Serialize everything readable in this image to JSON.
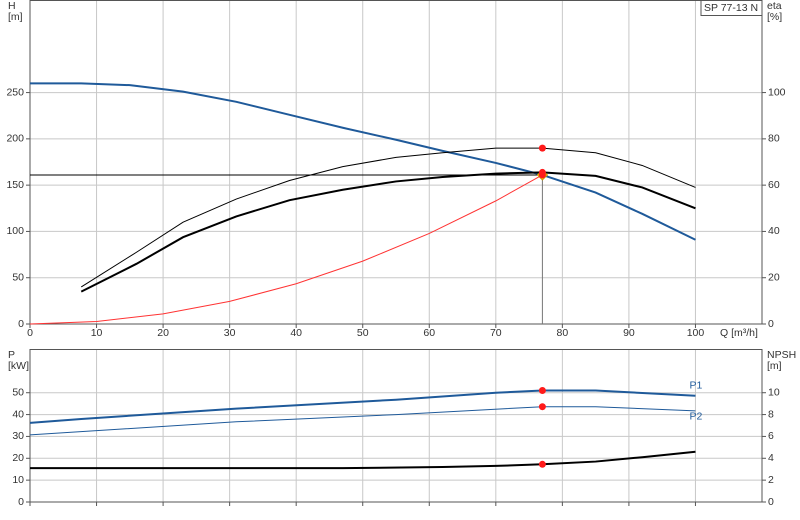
{
  "chart_data": [
    {
      "type": "line",
      "title": "SP 77-13 N",
      "y_label": "H",
      "y_unit": "[m]",
      "y2_label": "eta",
      "y2_unit": "[%]",
      "x_label": "Q [m³/h]",
      "xlim": [
        0,
        110
      ],
      "xticks": [
        0,
        10,
        20,
        30,
        40,
        50,
        60,
        70,
        80,
        90,
        100
      ],
      "ylim": [
        0,
        350
      ],
      "yticks": [
        0,
        50,
        100,
        150,
        200,
        250
      ],
      "y2lim": [
        0,
        140
      ],
      "y2ticks": [
        0,
        20,
        40,
        60,
        80,
        100
      ],
      "grid": true,
      "duty": {
        "x": 77,
        "y": 161
      },
      "series": [
        {
          "color": "#1f5a9a",
          "width": 2,
          "x": [
            0,
            7.7,
            15,
            23,
            31,
            39,
            47,
            55,
            62,
            70,
            77,
            85,
            92,
            100
          ],
          "values": [
            260,
            260,
            258,
            251,
            240,
            226,
            212,
            199,
            187,
            174,
            161,
            142,
            119,
            91
          ],
          "marker": {
            "x": 77,
            "y": 161
          }
        },
        {
          "color": "#000000",
          "width": 1,
          "axis": "y2",
          "x": [
            7.7,
            16,
            23,
            31,
            39,
            47,
            55,
            62,
            70,
            77,
            85,
            92,
            100
          ],
          "values": [
            16,
            31,
            44,
            54,
            62,
            68,
            72,
            74,
            76,
            76,
            74,
            68.5,
            59
          ],
          "marker": {
            "x": 77,
            "y": 76
          }
        },
        {
          "color": "#000000",
          "width": 2,
          "axis": "y2",
          "x": [
            7.7,
            16,
            23,
            31,
            39,
            47,
            55,
            62,
            70,
            77,
            85,
            92,
            100
          ],
          "values": [
            14,
            26,
            37.5,
            46.5,
            53.5,
            58,
            61.6,
            63.5,
            65,
            65.5,
            64,
            59,
            50
          ],
          "marker": {
            "x": 77,
            "y": 65.5
          }
        },
        {
          "color": "#ff3333",
          "width": 1,
          "x": [
            0,
            10,
            20,
            30,
            40,
            50,
            60,
            70,
            77
          ],
          "values": [
            0,
            2.7,
            10.9,
            24.4,
            43.5,
            67.9,
            97.8,
            133,
            161
          ]
        }
      ]
    },
    {
      "type": "line",
      "y_label": "P",
      "y_unit": "[kW]",
      "y2_label": "NPSH",
      "y2_unit": "[m]",
      "xlim": [
        0,
        110
      ],
      "xticks": [
        0,
        10,
        20,
        30,
        40,
        50,
        60,
        70,
        80,
        90,
        100
      ],
      "ylim": [
        0,
        70
      ],
      "yticks": [
        0,
        10,
        20,
        30,
        40,
        50
      ],
      "y2lim": [
        0,
        14
      ],
      "y2ticks": [
        0,
        2,
        4,
        6,
        8,
        10
      ],
      "grid": true,
      "series": [
        {
          "name": "P1",
          "color": "#1f5a9a",
          "width": 2,
          "x": [
            0,
            7.7,
            31,
            55,
            70,
            77,
            85,
            100
          ],
          "values": [
            36.2,
            38,
            42.7,
            46.8,
            50,
            51,
            51,
            48.6
          ],
          "marker": {
            "x": 77,
            "y": 51
          }
        },
        {
          "name": "P2",
          "color": "#1f5a9a",
          "width": 1,
          "x": [
            0,
            31,
            55,
            77,
            85,
            100
          ],
          "values": [
            30.7,
            36.7,
            40,
            43.6,
            43.6,
            41.7
          ],
          "marker": {
            "x": 77,
            "y": 43.6
          }
        },
        {
          "color": "#000000",
          "width": 2,
          "axis": "y2",
          "x": [
            0,
            7.7,
            47,
            62,
            70,
            77,
            85,
            92,
            100
          ],
          "values": [
            3.1,
            3.1,
            3.1,
            3.2,
            3.3,
            3.45,
            3.7,
            4.1,
            4.6
          ],
          "marker": {
            "x": 77,
            "y": 3.45
          }
        }
      ]
    }
  ]
}
